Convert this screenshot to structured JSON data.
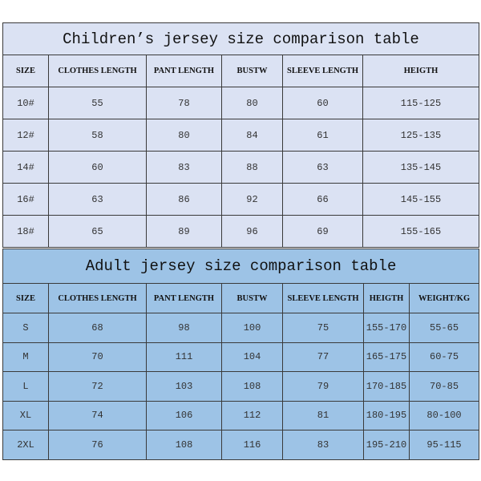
{
  "children": {
    "title": "Children’s jersey size comparison table",
    "headers": [
      "SIZE",
      "CLOTHES LENGTH",
      "PANT LENGTH",
      "BUSTW",
      "SLEEVE LENGTH",
      "HEIGTH"
    ],
    "rows": [
      [
        "10#",
        "55",
        "78",
        "80",
        "60",
        "115-125"
      ],
      [
        "12#",
        "58",
        "80",
        "84",
        "61",
        "125-135"
      ],
      [
        "14#",
        "60",
        "83",
        "88",
        "63",
        "135-145"
      ],
      [
        "16#",
        "63",
        "86",
        "92",
        "66",
        "145-155"
      ],
      [
        "18#",
        "65",
        "89",
        "96",
        "69",
        "155-165"
      ]
    ]
  },
  "adult": {
    "title": "Adult jersey size comparison table",
    "headers": [
      "SIZE",
      "CLOTHES LENGTH",
      "PANT LENGTH",
      "BUSTW",
      "SLEEVE LENGTH",
      "HEIGTH",
      "WEIGHT/KG"
    ],
    "rows": [
      [
        "S",
        "68",
        "98",
        "100",
        "75",
        "155-170",
        "55-65"
      ],
      [
        "M",
        "70",
        "111",
        "104",
        "77",
        "165-175",
        "60-75"
      ],
      [
        "L",
        "72",
        "103",
        "108",
        "79",
        "170-185",
        "70-85"
      ],
      [
        "XL",
        "74",
        "106",
        "112",
        "81",
        "180-195",
        "80-100"
      ],
      [
        "2XL",
        "76",
        "108",
        "116",
        "83",
        "195-210",
        "95-115"
      ]
    ]
  },
  "colors": {
    "children_bg": "#dbe2f3",
    "adult_bg": "#9dc3e6"
  }
}
